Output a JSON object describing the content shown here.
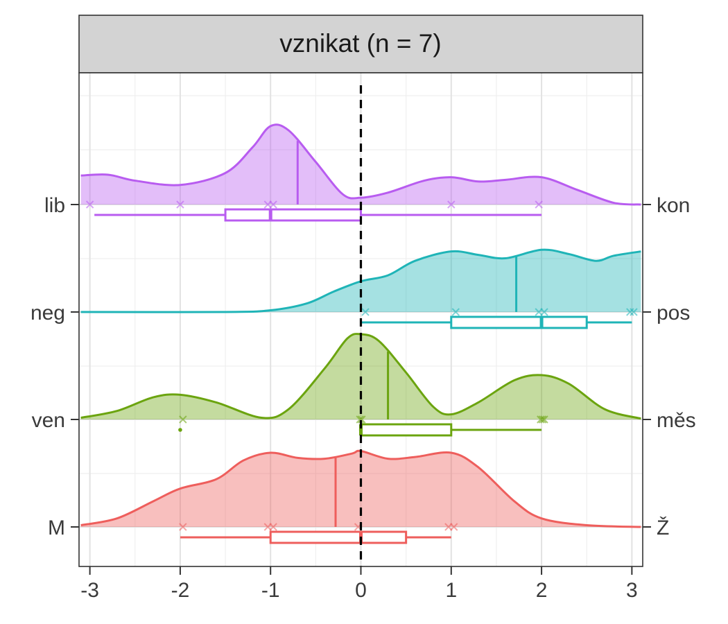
{
  "chart_data": {
    "type": "ridgeline",
    "title": "vznikat (n = 7)",
    "xlim": [
      -3.12,
      3.12
    ],
    "x_ticks": [
      -3,
      -2,
      -1,
      0,
      1,
      2,
      3
    ],
    "x_tick_labels": [
      "-3",
      "-2",
      "-1",
      "0",
      "1",
      "2",
      "3"
    ],
    "reference_line_x": 0,
    "grid": true,
    "rows": [
      {
        "left_label": "lib",
        "right_label": "kon",
        "color": "#B85CF0",
        "points": [
          -3,
          -2,
          -1.03,
          -0.97,
          1,
          1.97
        ],
        "median_line": -0.7,
        "box": {
          "min": -2.95,
          "q1": -1.5,
          "median": -1,
          "q3": 0,
          "max": 2
        },
        "outliers": [],
        "density": [
          [
            -3.1,
            0.34
          ],
          [
            -2.8,
            0.35
          ],
          [
            -2.5,
            0.28
          ],
          [
            -2.0,
            0.23
          ],
          [
            -1.5,
            0.37
          ],
          [
            -1.2,
            0.67
          ],
          [
            -1.0,
            0.92
          ],
          [
            -0.8,
            0.87
          ],
          [
            -0.5,
            0.5
          ],
          [
            -0.2,
            0.12
          ],
          [
            0.0,
            0.08
          ],
          [
            0.3,
            0.14
          ],
          [
            0.7,
            0.28
          ],
          [
            1.0,
            0.32
          ],
          [
            1.3,
            0.27
          ],
          [
            1.6,
            0.29
          ],
          [
            2.0,
            0.32
          ],
          [
            2.4,
            0.17
          ],
          [
            2.8,
            0.02
          ],
          [
            3.1,
            0.0
          ]
        ]
      },
      {
        "left_label": "neg",
        "right_label": "pos",
        "color": "#1FB4B7",
        "points": [
          0.05,
          1.05,
          1.97,
          2.03,
          2.98,
          3.02
        ],
        "median_line": 1.72,
        "box": {
          "min": 0,
          "q1": 1,
          "median": 2,
          "q3": 2.5,
          "max": 3
        },
        "outliers": [],
        "density": [
          [
            -3.1,
            0.0
          ],
          [
            -1.5,
            0.0
          ],
          [
            -1.0,
            0.02
          ],
          [
            -0.6,
            0.1
          ],
          [
            -0.3,
            0.24
          ],
          [
            0.0,
            0.36
          ],
          [
            0.3,
            0.43
          ],
          [
            0.6,
            0.6
          ],
          [
            1.0,
            0.71
          ],
          [
            1.3,
            0.67
          ],
          [
            1.6,
            0.63
          ],
          [
            2.0,
            0.73
          ],
          [
            2.3,
            0.68
          ],
          [
            2.6,
            0.6
          ],
          [
            2.8,
            0.66
          ],
          [
            3.1,
            0.71
          ]
        ]
      },
      {
        "left_label": "ven",
        "right_label": "měs",
        "color": "#6BA40F",
        "points": [
          -1.97,
          -0.01,
          0.01,
          1.99,
          2.01,
          2.03
        ],
        "median_line": 0.3,
        "box": {
          "min": -0.02,
          "q1": 0,
          "median": 0,
          "q3": 1,
          "max": 2
        },
        "outliers": [
          -2
        ],
        "density": [
          [
            -3.1,
            0.02
          ],
          [
            -2.7,
            0.1
          ],
          [
            -2.3,
            0.26
          ],
          [
            -2.0,
            0.29
          ],
          [
            -1.6,
            0.2
          ],
          [
            -1.1,
            0.02
          ],
          [
            -0.8,
            0.12
          ],
          [
            -0.4,
            0.6
          ],
          [
            -0.15,
            0.95
          ],
          [
            0.0,
            1.0
          ],
          [
            0.2,
            0.92
          ],
          [
            0.5,
            0.55
          ],
          [
            0.8,
            0.15
          ],
          [
            1.0,
            0.06
          ],
          [
            1.3,
            0.2
          ],
          [
            1.7,
            0.46
          ],
          [
            2.0,
            0.52
          ],
          [
            2.3,
            0.42
          ],
          [
            2.7,
            0.12
          ],
          [
            3.1,
            0.01
          ]
        ]
      },
      {
        "left_label": "M",
        "right_label": "Ž",
        "color": "#EE5E5C",
        "points": [
          -1.97,
          -1.03,
          -0.97,
          -0.03,
          0.97,
          1.03
        ],
        "median_line": -0.28,
        "box": {
          "min": -2,
          "q1": -1,
          "median": 0,
          "q3": 0.5,
          "max": 1
        },
        "outliers": [],
        "density": [
          [
            -3.1,
            0.02
          ],
          [
            -2.7,
            0.1
          ],
          [
            -2.3,
            0.3
          ],
          [
            -2.0,
            0.45
          ],
          [
            -1.6,
            0.56
          ],
          [
            -1.3,
            0.78
          ],
          [
            -1.0,
            0.87
          ],
          [
            -0.7,
            0.81
          ],
          [
            -0.4,
            0.8
          ],
          [
            -0.1,
            0.86
          ],
          [
            0.0,
            0.89
          ],
          [
            0.3,
            0.8
          ],
          [
            0.6,
            0.82
          ],
          [
            1.0,
            0.87
          ],
          [
            1.3,
            0.7
          ],
          [
            1.7,
            0.3
          ],
          [
            2.0,
            0.1
          ],
          [
            2.5,
            0.02
          ],
          [
            3.1,
            0.0
          ]
        ]
      }
    ]
  }
}
